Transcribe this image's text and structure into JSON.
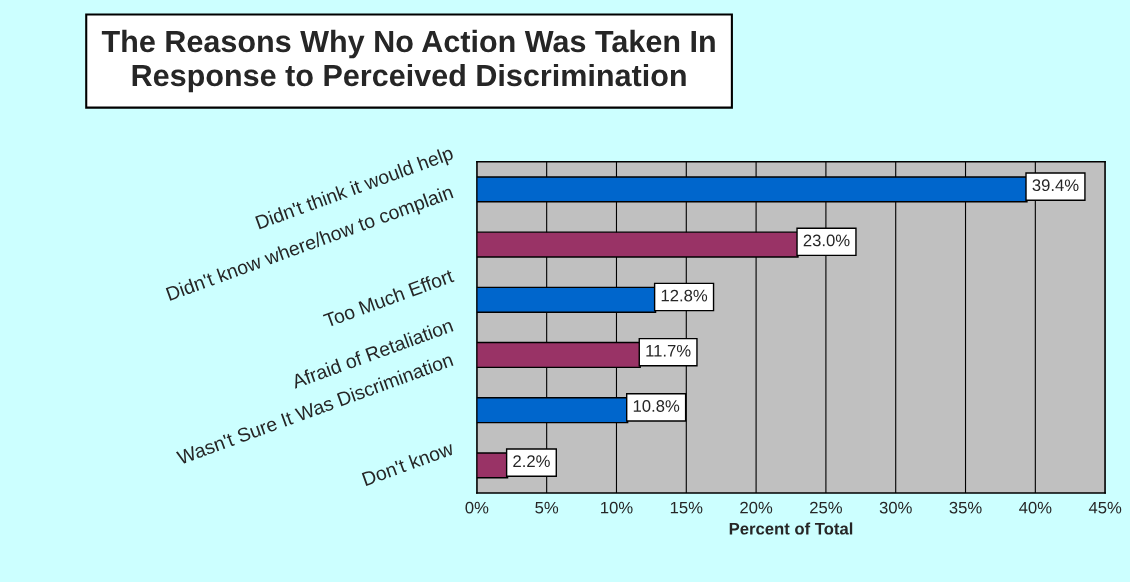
{
  "chart_data": {
    "type": "bar",
    "orientation": "horizontal",
    "title": "The Reasons Why No Action Was Taken In\nResponse to Perceived Discrimination",
    "xlabel": "Percent of Total",
    "categories": [
      "Didn't think it would help",
      "Didn't know where/how to complain",
      "Too Much Effort",
      "Afraid of Retaliation",
      "Wasn't Sure It Was Discrimination",
      "Don't know"
    ],
    "values": [
      39.4,
      23.0,
      12.8,
      11.7,
      10.8,
      2.2
    ],
    "value_labels": [
      "39.4%",
      "23.0%",
      "12.8%",
      "11.7%",
      "10.8%",
      "2.2%"
    ],
    "colors": [
      "#0066cc",
      "#993366",
      "#0066cc",
      "#993366",
      "#0066cc",
      "#993366"
    ],
    "xlim": [
      0,
      45
    ],
    "xticks": [
      {
        "value": 0,
        "label": "0%"
      },
      {
        "value": 5,
        "label": "5%"
      },
      {
        "value": 10,
        "label": "10%"
      },
      {
        "value": 15,
        "label": "15%"
      },
      {
        "value": 20,
        "label": "20%"
      },
      {
        "value": 25,
        "label": "25%"
      },
      {
        "value": 30,
        "label": "30%"
      },
      {
        "value": 35,
        "label": "35%"
      },
      {
        "value": 40,
        "label": "40%"
      },
      {
        "value": 45,
        "label": "45%"
      }
    ],
    "grid": "x",
    "legend": false
  }
}
